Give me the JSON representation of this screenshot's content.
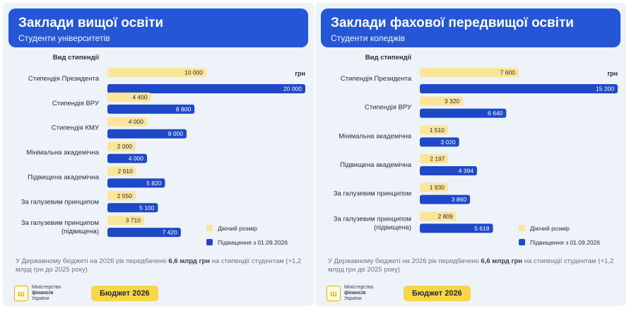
{
  "panels": [
    {
      "title": "Заклади вищої освіти",
      "subtitle": "Студенти університетів",
      "footnote_parts": [
        "У Державному бюджеті на 2026 рік передбачено ",
        "6,6 млрд грн",
        " на стипендії студентам (+1,2 млрд грн до 2025 року)"
      ],
      "ministry": [
        "Міністерство",
        "фінансів",
        "України"
      ],
      "budget_badge": "Бюджет 2026"
    },
    {
      "title": "Заклади фахової передвищої освіти",
      "subtitle": "Студенти коледжів",
      "footnote_parts": [
        "У Державному бюджеті на 2026 рік передбачено ",
        "6,6 млрд грн",
        " на стипендії студентам (+1,2 млрд грн до 2025 року)"
      ],
      "ministry": [
        "Міністерство",
        "фінансів",
        "України"
      ],
      "budget_badge": "Бюджет 2026"
    }
  ],
  "chart_data": [
    {
      "type": "bar",
      "orientation": "horizontal",
      "category_header": "Вид стипендії",
      "unit": "грн",
      "categories": [
        "Стипендія Президента",
        "Стипендія ВРУ",
        "Стипендія КМУ",
        "Мінімальна академічна",
        "Підвищена академічна",
        "За галузевим принципом",
        "За галузевим принципом (підвищена)"
      ],
      "series": [
        {
          "name": "Діючий розмір",
          "color": "#fbe59a",
          "values": [
            10000,
            4400,
            4000,
            2000,
            2910,
            2550,
            3710
          ],
          "labels": [
            "10 000",
            "4 400",
            "4 000",
            "2 000",
            "2 910",
            "2 550",
            "3 710"
          ]
        },
        {
          "name": "Підвищення з 01.09.2026",
          "color": "#1f48c7",
          "values": [
            20000,
            8800,
            8000,
            4000,
            5820,
            5100,
            7420
          ],
          "labels": [
            "20 000",
            "8 800",
            "8 000",
            "4 000",
            "5 820",
            "5 100",
            "7 420"
          ]
        }
      ],
      "xlim": [
        0,
        20000
      ],
      "legend": "bottom-right"
    },
    {
      "type": "bar",
      "orientation": "horizontal",
      "category_header": "Вид стипендії",
      "unit": "грн",
      "categories": [
        "Стипендія Президента",
        "Стипендія ВРУ",
        "Мінімальна академічна",
        "Підвищена академічна",
        "За галузевим принципом",
        "За галузевим принципом (підвищена)"
      ],
      "series": [
        {
          "name": "Діючий розмір",
          "color": "#fbe59a",
          "values": [
            7600,
            3320,
            1510,
            2197,
            1930,
            2809
          ],
          "labels": [
            "7 600",
            "3 320",
            "1 510",
            "2 197",
            "1 930",
            "2 809"
          ]
        },
        {
          "name": "Підвищення з 01.09.2026",
          "color": "#1f48c7",
          "values": [
            15200,
            6640,
            3020,
            4394,
            3860,
            5618
          ],
          "labels": [
            "15 200",
            "6 640",
            "3 020",
            "4 394",
            "3 860",
            "5 618"
          ]
        }
      ],
      "xlim": [
        0,
        15200
      ],
      "legend": "bottom-right"
    }
  ]
}
